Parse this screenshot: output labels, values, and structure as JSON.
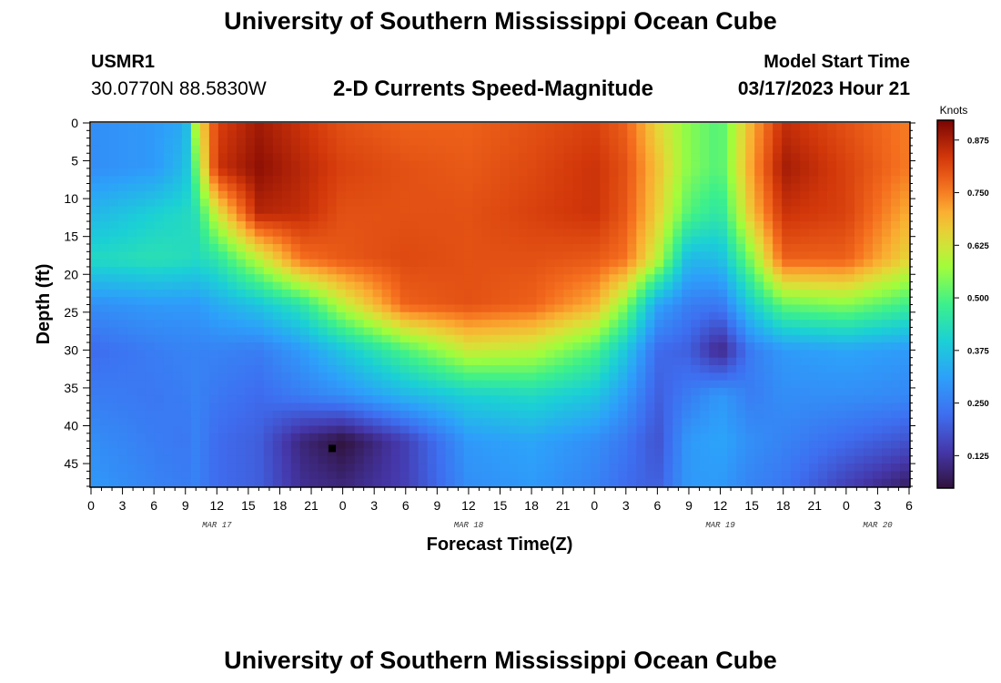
{
  "header": {
    "title": "University of Southern Mississippi Ocean Cube",
    "station": "USMR1",
    "coords": "30.0770N  88.5830W",
    "subtitle": "2-D Currents Speed-Magnitude",
    "start_label": "Model Start Time",
    "start_value": "03/17/2023 Hour 21"
  },
  "footer": {
    "title": "University of Southern Mississippi Ocean Cube"
  },
  "chart_data": {
    "type": "heatmap",
    "title": "2-D Currents Speed-Magnitude",
    "xlabel": "Forecast Time(Z)",
    "ylabel": "Depth (ft)",
    "colorbar_label": "Knots",
    "x_hours_range": [
      0,
      78
    ],
    "y_range": [
      0,
      48
    ],
    "x_ticks": [
      "0",
      "3",
      "6",
      "9",
      "12",
      "15",
      "18",
      "21",
      "0",
      "3",
      "6",
      "9",
      "12",
      "15",
      "18",
      "21",
      "0",
      "3",
      "6",
      "9",
      "12",
      "15",
      "18",
      "21",
      "0",
      "3",
      "6"
    ],
    "y_ticks": [
      "0",
      "5",
      "10",
      "15",
      "20",
      "25",
      "30",
      "35",
      "40",
      "45"
    ],
    "date_labels": [
      {
        "text": "MAR 17",
        "hour": 12
      },
      {
        "text": "MAR 18",
        "hour": 36
      },
      {
        "text": "MAR 19",
        "hour": 60
      },
      {
        "text": "MAR 20",
        "hour": 75
      }
    ],
    "colorbar_range": [
      0.05,
      0.92
    ],
    "colorbar_ticks": [
      "0.875",
      "0.750",
      "0.625",
      "0.500",
      "0.375",
      "0.250",
      "0.125"
    ],
    "colorbar_tick_values": [
      0.875,
      0.75,
      0.625,
      0.5,
      0.375,
      0.25,
      0.125
    ],
    "depths": [
      0,
      6,
      12,
      18,
      24,
      30,
      36,
      42,
      48
    ],
    "hours": [
      0,
      6,
      9,
      10,
      12,
      16,
      20,
      24,
      30,
      36,
      42,
      48,
      51,
      54,
      57,
      60,
      63,
      66,
      72,
      78
    ],
    "speeds": [
      [
        0.28,
        0.3,
        0.33,
        0.6,
        0.82,
        0.88,
        0.84,
        0.8,
        0.78,
        0.78,
        0.8,
        0.82,
        0.78,
        0.65,
        0.55,
        0.5,
        0.7,
        0.85,
        0.8,
        0.75
      ],
      [
        0.28,
        0.3,
        0.36,
        0.52,
        0.84,
        0.9,
        0.86,
        0.82,
        0.8,
        0.79,
        0.81,
        0.84,
        0.8,
        0.68,
        0.55,
        0.5,
        0.72,
        0.88,
        0.82,
        0.75
      ],
      [
        0.35,
        0.4,
        0.42,
        0.44,
        0.62,
        0.86,
        0.85,
        0.8,
        0.8,
        0.8,
        0.82,
        0.84,
        0.79,
        0.66,
        0.5,
        0.45,
        0.68,
        0.84,
        0.82,
        0.7
      ],
      [
        0.42,
        0.44,
        0.43,
        0.42,
        0.45,
        0.6,
        0.76,
        0.79,
        0.81,
        0.8,
        0.8,
        0.79,
        0.76,
        0.6,
        0.35,
        0.36,
        0.55,
        0.78,
        0.78,
        0.65
      ],
      [
        0.28,
        0.3,
        0.3,
        0.3,
        0.33,
        0.38,
        0.45,
        0.6,
        0.78,
        0.8,
        0.78,
        0.7,
        0.55,
        0.32,
        0.25,
        0.24,
        0.4,
        0.52,
        0.55,
        0.48
      ],
      [
        0.22,
        0.25,
        0.26,
        0.26,
        0.26,
        0.25,
        0.3,
        0.38,
        0.5,
        0.62,
        0.6,
        0.5,
        0.38,
        0.22,
        0.2,
        0.1,
        0.25,
        0.3,
        0.32,
        0.3
      ],
      [
        0.25,
        0.24,
        0.25,
        0.26,
        0.24,
        0.22,
        0.25,
        0.28,
        0.35,
        0.4,
        0.42,
        0.38,
        0.3,
        0.2,
        0.25,
        0.3,
        0.25,
        0.28,
        0.28,
        0.27
      ],
      [
        0.28,
        0.25,
        0.24,
        0.26,
        0.22,
        0.2,
        0.1,
        0.05,
        0.15,
        0.3,
        0.32,
        0.28,
        0.24,
        0.18,
        0.3,
        0.32,
        0.28,
        0.26,
        0.22,
        0.18
      ],
      [
        0.3,
        0.26,
        0.25,
        0.26,
        0.22,
        0.2,
        0.12,
        0.1,
        0.15,
        0.28,
        0.3,
        0.26,
        0.22,
        0.2,
        0.3,
        0.3,
        0.26,
        0.24,
        0.15,
        0.08
      ]
    ],
    "marker": {
      "hour": 23,
      "depth": 43
    }
  }
}
